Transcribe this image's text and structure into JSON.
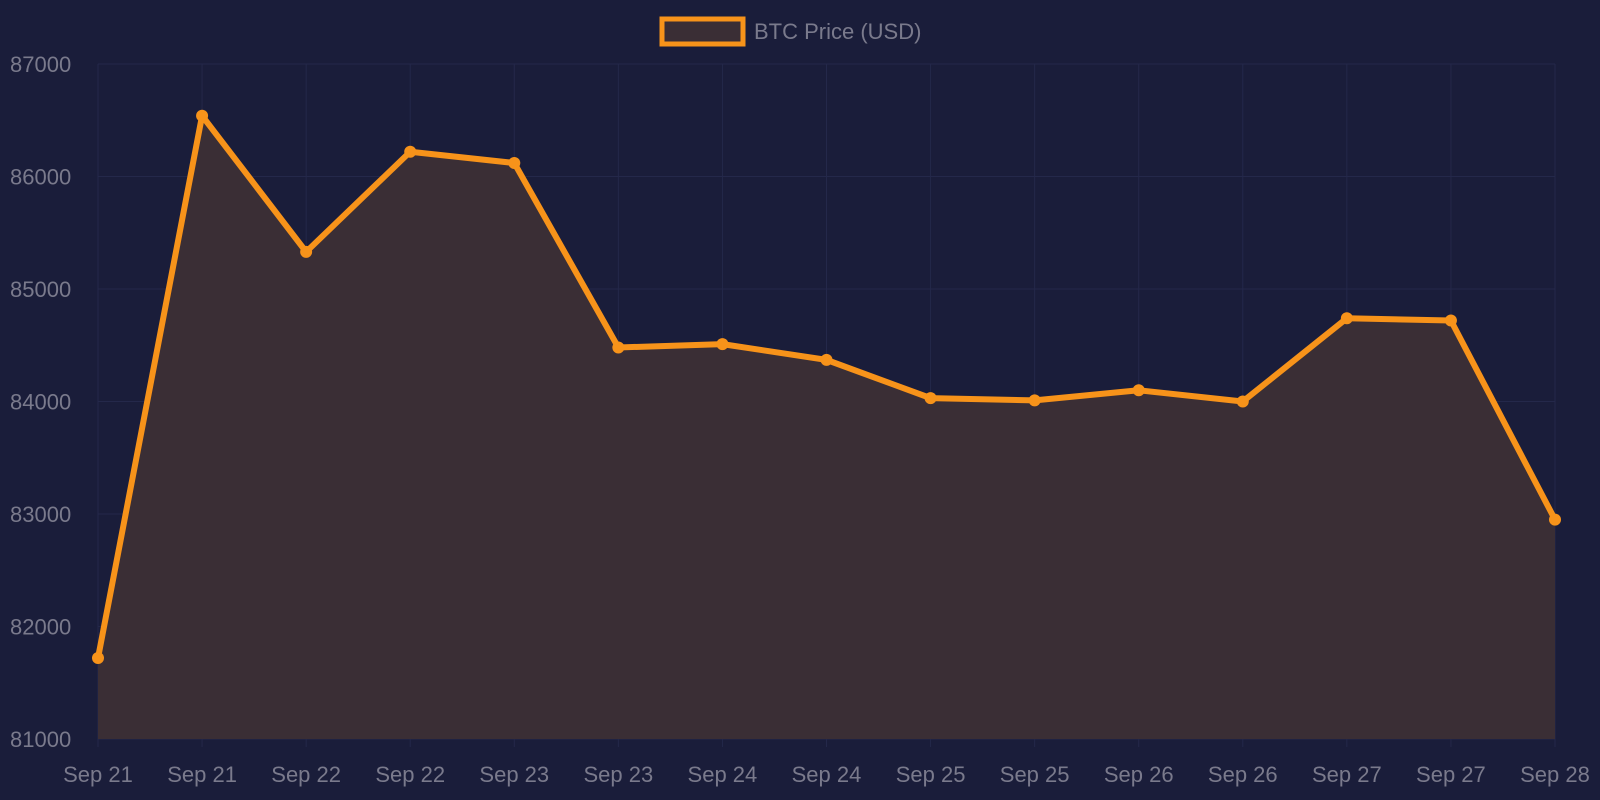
{
  "chart_data": {
    "type": "area",
    "title": "",
    "xlabel": "",
    "ylabel": "",
    "legend": {
      "position": "top-center",
      "entries": [
        "BTC Price (USD)"
      ]
    },
    "x": [
      "Sep 21",
      "Sep 21",
      "Sep 22",
      "Sep 22",
      "Sep 23",
      "Sep 23",
      "Sep 24",
      "Sep 24",
      "Sep 25",
      "Sep 25",
      "Sep 26",
      "Sep 26",
      "Sep 27",
      "Sep 27",
      "Sep 28"
    ],
    "series": [
      {
        "name": "BTC Price (USD)",
        "values": [
          81720,
          86540,
          85330,
          86220,
          86120,
          84480,
          84510,
          84370,
          84030,
          84010,
          84100,
          84000,
          84740,
          84720,
          82950
        ]
      }
    ],
    "ylim": [
      81000,
      87000
    ],
    "yticks": [
      81000,
      82000,
      83000,
      84000,
      85000,
      86000,
      87000
    ],
    "grid": true,
    "colors": {
      "background": "#1a1d3a",
      "line": "#f7931a",
      "fill": "#3a2e35",
      "grid": "#24284a",
      "text": "#7a7a8c"
    }
  }
}
